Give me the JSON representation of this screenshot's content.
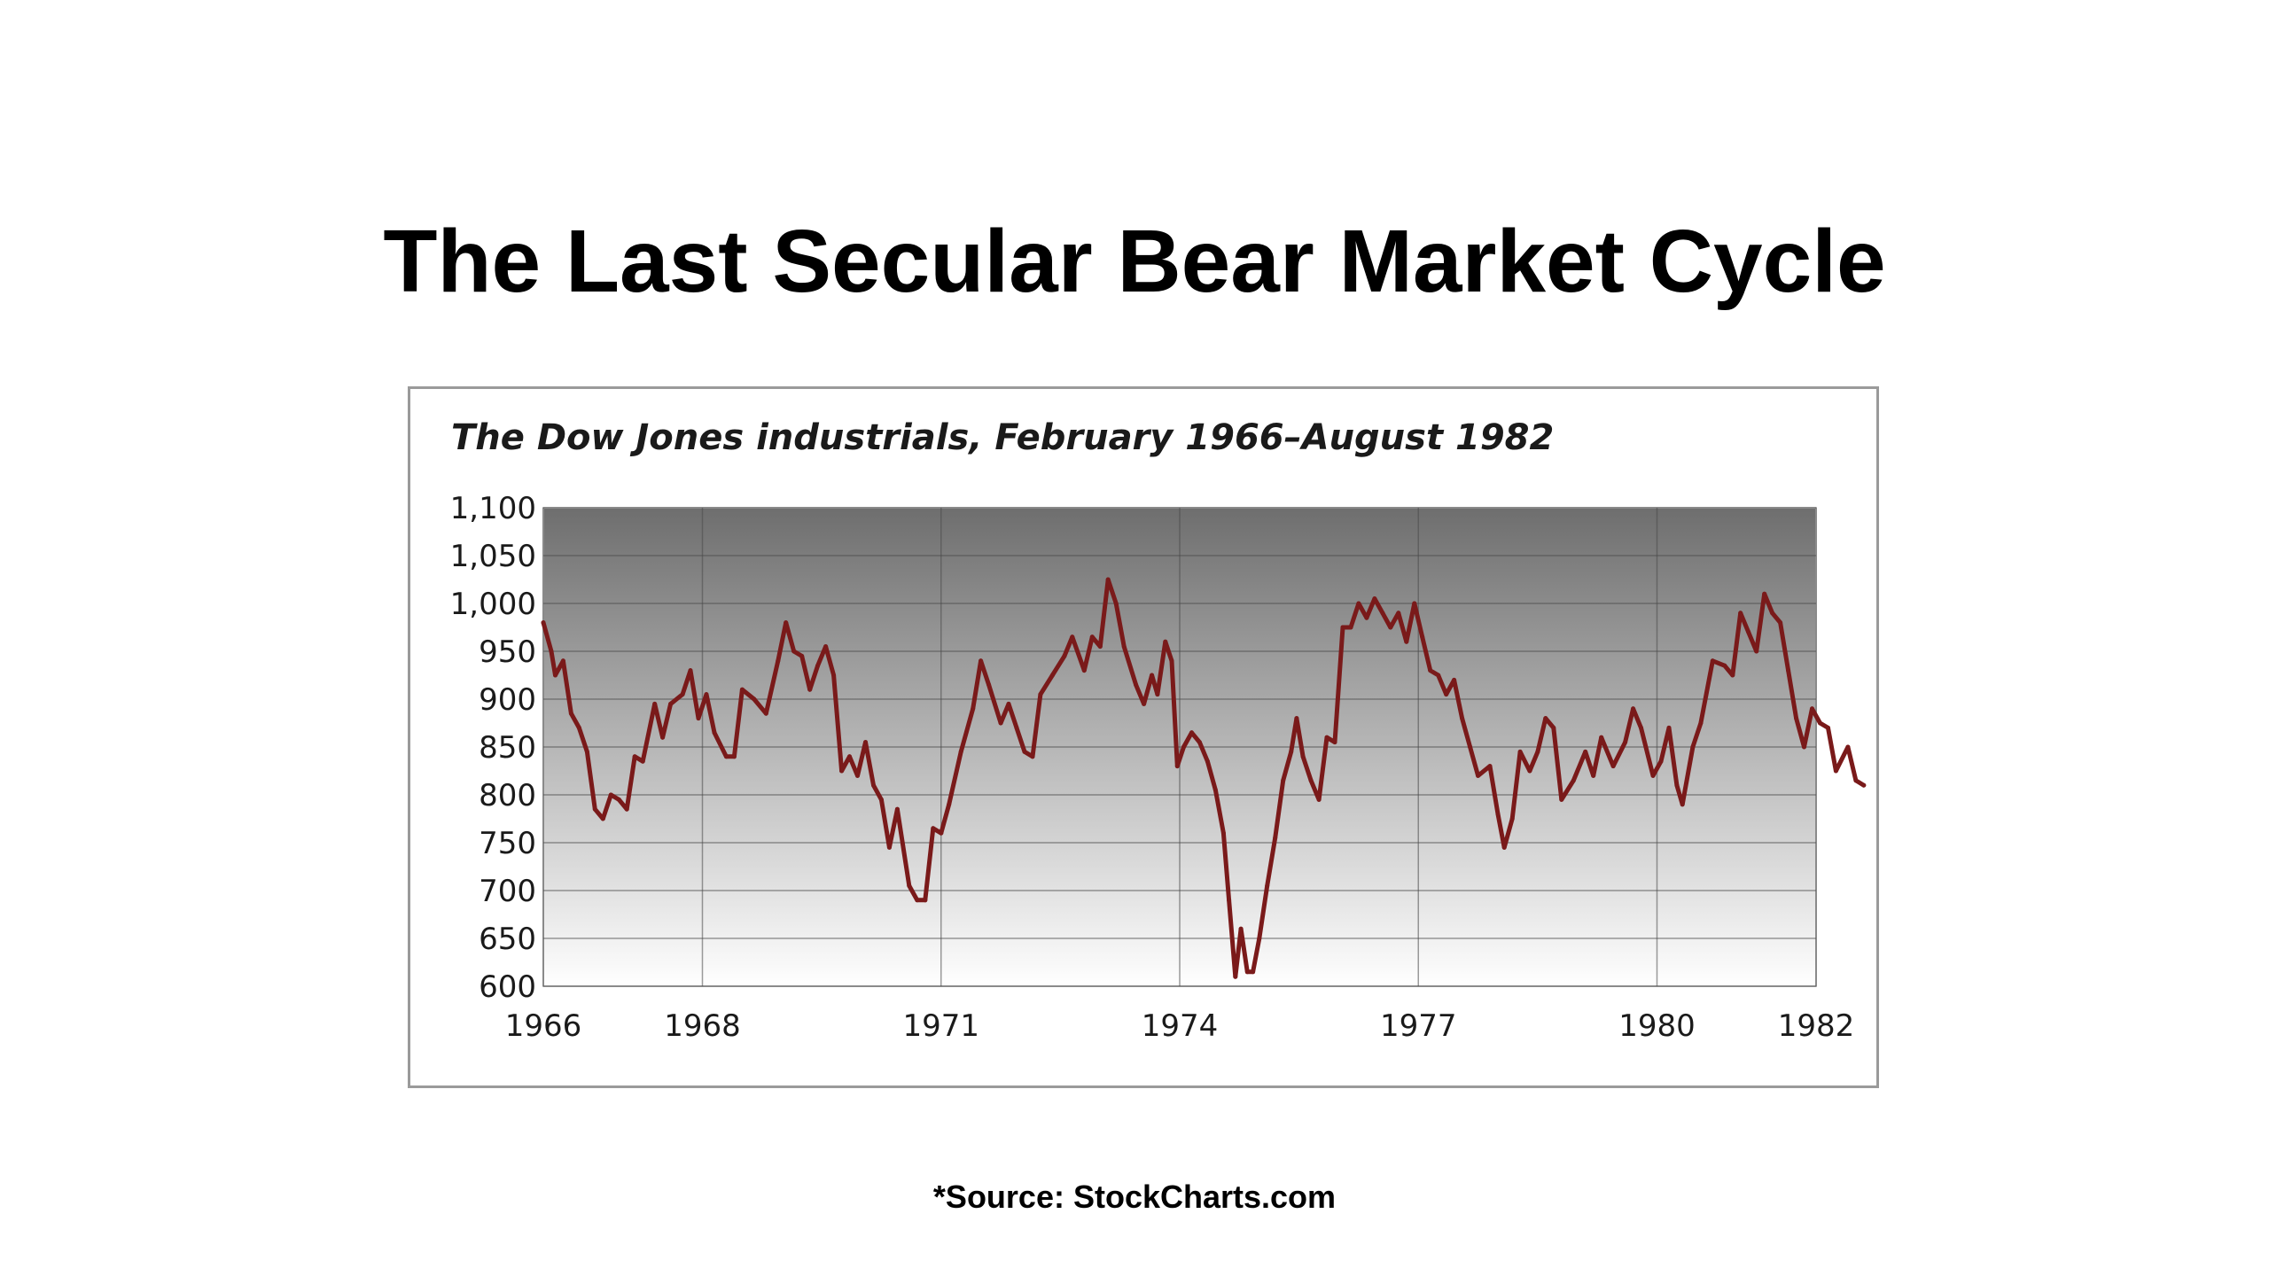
{
  "slide": {
    "title": "The Last Secular Bear Market Cycle",
    "source": "*Source: StockCharts.com"
  },
  "chart_data": {
    "type": "line",
    "title": "The Dow Jones industrials, February 1966–August 1982",
    "xlabel": "",
    "ylabel": "",
    "xlim": [
      1966.0,
      1982.0
    ],
    "ylim": [
      600,
      1100
    ],
    "grid": true,
    "legend": "none",
    "line_color": "#7a1a1a",
    "plot_gradient": [
      "#707070",
      "#ffffff"
    ],
    "x_ticks": [
      {
        "value": 1966,
        "label": "1966"
      },
      {
        "value": 1968,
        "label": "1968"
      },
      {
        "value": 1971,
        "label": "1971"
      },
      {
        "value": 1974,
        "label": "1974"
      },
      {
        "value": 1977,
        "label": "1977"
      },
      {
        "value": 1980,
        "label": "1980"
      },
      {
        "value": 1982,
        "label": "1982"
      }
    ],
    "y_ticks": [
      {
        "value": 600,
        "label": "600"
      },
      {
        "value": 650,
        "label": "650"
      },
      {
        "value": 700,
        "label": "700"
      },
      {
        "value": 750,
        "label": "750"
      },
      {
        "value": 800,
        "label": "800"
      },
      {
        "value": 850,
        "label": "850"
      },
      {
        "value": 900,
        "label": "900"
      },
      {
        "value": 950,
        "label": "950"
      },
      {
        "value": 1000,
        "label": "1,000"
      },
      {
        "value": 1050,
        "label": "1,050"
      },
      {
        "value": 1100,
        "label": "1,100"
      }
    ],
    "series": [
      {
        "values": [
          [
            1966.0,
            980
          ],
          [
            1966.1,
            950
          ],
          [
            1966.15,
            925
          ],
          [
            1966.25,
            940
          ],
          [
            1966.35,
            885
          ],
          [
            1966.45,
            870
          ],
          [
            1966.55,
            845
          ],
          [
            1966.65,
            785
          ],
          [
            1966.75,
            775
          ],
          [
            1966.85,
            800
          ],
          [
            1966.95,
            795
          ],
          [
            1967.05,
            785
          ],
          [
            1967.15,
            840
          ],
          [
            1967.25,
            835
          ],
          [
            1967.4,
            895
          ],
          [
            1967.5,
            860
          ],
          [
            1967.6,
            895
          ],
          [
            1967.75,
            905
          ],
          [
            1967.85,
            930
          ],
          [
            1967.95,
            880
          ],
          [
            1968.05,
            905
          ],
          [
            1968.15,
            865
          ],
          [
            1968.3,
            840
          ],
          [
            1968.4,
            840
          ],
          [
            1968.5,
            910
          ],
          [
            1968.65,
            900
          ],
          [
            1968.8,
            885
          ],
          [
            1968.95,
            940
          ],
          [
            1969.05,
            980
          ],
          [
            1969.15,
            950
          ],
          [
            1969.25,
            945
          ],
          [
            1969.35,
            910
          ],
          [
            1969.45,
            935
          ],
          [
            1969.55,
            955
          ],
          [
            1969.65,
            925
          ],
          [
            1969.75,
            825
          ],
          [
            1969.85,
            840
          ],
          [
            1969.95,
            820
          ],
          [
            1970.05,
            855
          ],
          [
            1970.15,
            810
          ],
          [
            1970.25,
            795
          ],
          [
            1970.35,
            745
          ],
          [
            1970.45,
            785
          ],
          [
            1970.6,
            705
          ],
          [
            1970.7,
            690
          ],
          [
            1970.8,
            690
          ],
          [
            1970.9,
            765
          ],
          [
            1971.0,
            760
          ],
          [
            1971.1,
            790
          ],
          [
            1971.25,
            845
          ],
          [
            1971.4,
            890
          ],
          [
            1971.5,
            940
          ],
          [
            1971.6,
            915
          ],
          [
            1971.75,
            875
          ],
          [
            1971.85,
            895
          ],
          [
            1971.95,
            870
          ],
          [
            1972.05,
            845
          ],
          [
            1972.15,
            840
          ],
          [
            1972.25,
            905
          ],
          [
            1972.4,
            925
          ],
          [
            1972.55,
            945
          ],
          [
            1972.65,
            965
          ],
          [
            1972.8,
            930
          ],
          [
            1972.9,
            965
          ],
          [
            1973.0,
            955
          ],
          [
            1973.1,
            1025
          ],
          [
            1973.2,
            1000
          ],
          [
            1973.3,
            955
          ],
          [
            1973.45,
            915
          ],
          [
            1973.55,
            895
          ],
          [
            1973.65,
            925
          ],
          [
            1973.72,
            905
          ],
          [
            1973.82,
            960
          ],
          [
            1973.9,
            940
          ],
          [
            1973.97,
            830
          ],
          [
            1974.05,
            850
          ],
          [
            1974.15,
            865
          ],
          [
            1974.25,
            855
          ],
          [
            1974.35,
            835
          ],
          [
            1974.45,
            805
          ],
          [
            1974.55,
            760
          ],
          [
            1974.62,
            690
          ],
          [
            1974.7,
            610
          ],
          [
            1974.77,
            660
          ],
          [
            1974.85,
            615
          ],
          [
            1974.92,
            615
          ],
          [
            1975.0,
            650
          ],
          [
            1975.1,
            705
          ],
          [
            1975.2,
            755
          ],
          [
            1975.3,
            815
          ],
          [
            1975.4,
            845
          ],
          [
            1975.47,
            880
          ],
          [
            1975.55,
            840
          ],
          [
            1975.65,
            815
          ],
          [
            1975.75,
            795
          ],
          [
            1975.85,
            860
          ],
          [
            1975.95,
            855
          ],
          [
            1976.05,
            975
          ],
          [
            1976.15,
            975
          ],
          [
            1976.25,
            1000
          ],
          [
            1976.35,
            985
          ],
          [
            1976.45,
            1005
          ],
          [
            1976.55,
            990
          ],
          [
            1976.65,
            975
          ],
          [
            1976.75,
            990
          ],
          [
            1976.85,
            960
          ],
          [
            1976.95,
            1000
          ],
          [
            1977.05,
            965
          ],
          [
            1977.15,
            930
          ],
          [
            1977.25,
            925
          ],
          [
            1977.35,
            905
          ],
          [
            1977.45,
            920
          ],
          [
            1977.55,
            880
          ],
          [
            1977.65,
            850
          ],
          [
            1977.75,
            820
          ],
          [
            1977.9,
            830
          ],
          [
            1978.0,
            780
          ],
          [
            1978.08,
            745
          ],
          [
            1978.18,
            775
          ],
          [
            1978.28,
            845
          ],
          [
            1978.4,
            825
          ],
          [
            1978.5,
            845
          ],
          [
            1978.6,
            880
          ],
          [
            1978.7,
            870
          ],
          [
            1978.8,
            795
          ],
          [
            1978.95,
            815
          ],
          [
            1979.1,
            845
          ],
          [
            1979.2,
            820
          ],
          [
            1979.3,
            860
          ],
          [
            1979.45,
            830
          ],
          [
            1979.6,
            855
          ],
          [
            1979.7,
            890
          ],
          [
            1979.8,
            870
          ],
          [
            1979.95,
            820
          ],
          [
            1980.05,
            835
          ],
          [
            1980.15,
            870
          ],
          [
            1980.25,
            810
          ],
          [
            1980.32,
            790
          ],
          [
            1980.45,
            850
          ],
          [
            1980.55,
            875
          ],
          [
            1980.7,
            940
          ],
          [
            1980.85,
            935
          ],
          [
            1980.95,
            925
          ],
          [
            1981.05,
            990
          ],
          [
            1981.15,
            970
          ],
          [
            1981.25,
            950
          ],
          [
            1981.35,
            1010
          ],
          [
            1981.45,
            990
          ],
          [
            1981.55,
            980
          ],
          [
            1981.65,
            930
          ],
          [
            1981.75,
            880
          ],
          [
            1981.85,
            850
          ],
          [
            1981.95,
            890
          ],
          [
            1982.05,
            875
          ],
          [
            1982.15,
            870
          ],
          [
            1982.25,
            825
          ],
          [
            1982.4,
            850
          ],
          [
            1982.5,
            815
          ],
          [
            1982.6,
            810
          ]
        ]
      }
    ]
  }
}
